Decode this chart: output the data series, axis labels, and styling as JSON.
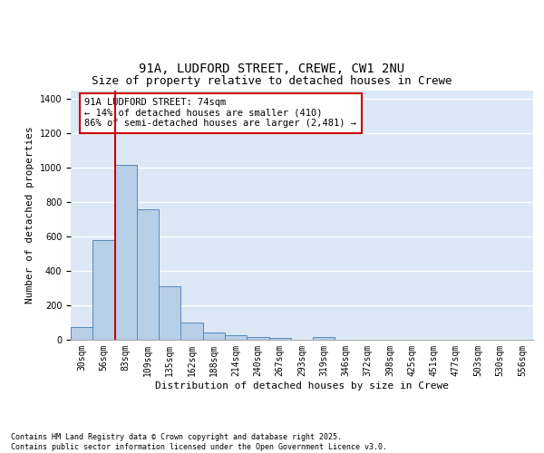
{
  "title1": "91A, LUDFORD STREET, CREWE, CW1 2NU",
  "title2": "Size of property relative to detached houses in Crewe",
  "xlabel": "Distribution of detached houses by size in Crewe",
  "ylabel": "Number of detached properties",
  "bin_labels": [
    "30sqm",
    "56sqm",
    "83sqm",
    "109sqm",
    "135sqm",
    "162sqm",
    "188sqm",
    "214sqm",
    "240sqm",
    "267sqm",
    "293sqm",
    "319sqm",
    "346sqm",
    "372sqm",
    "398sqm",
    "425sqm",
    "451sqm",
    "477sqm",
    "503sqm",
    "530sqm",
    "556sqm"
  ],
  "bin_values": [
    75,
    580,
    1020,
    760,
    310,
    100,
    40,
    25,
    15,
    10,
    0,
    15,
    0,
    0,
    0,
    0,
    0,
    0,
    0,
    0,
    0
  ],
  "bar_color": "#b8cfe8",
  "bar_edge_color": "#5588bb",
  "bg_color": "#dce8f5",
  "grid_color": "#ffffff",
  "vline_color": "#cc0000",
  "annotation_text": "91A LUDFORD STREET: 74sqm\n← 14% of detached houses are smaller (410)\n86% of semi-detached houses are larger (2,481) →",
  "annotation_box_facecolor": "#ffffff",
  "annotation_edge_color": "#cc0000",
  "ylim": [
    0,
    1450
  ],
  "yticks": [
    0,
    200,
    400,
    600,
    800,
    1000,
    1200,
    1400
  ],
  "footnote": "Contains HM Land Registry data © Crown copyright and database right 2025.\nContains public sector information licensed under the Open Government Licence v3.0.",
  "title1_fontsize": 10,
  "title2_fontsize": 9,
  "xlabel_fontsize": 8,
  "ylabel_fontsize": 8,
  "tick_fontsize": 7,
  "annot_fontsize": 7.5,
  "footnote_fontsize": 6
}
